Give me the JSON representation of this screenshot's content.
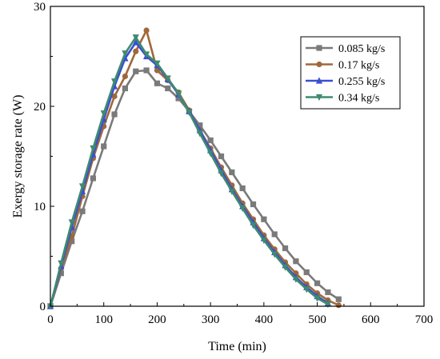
{
  "chart_data": {
    "type": "line",
    "xlabel": "Time (min)",
    "ylabel": "Exergy storage rate (W)",
    "xlim": [
      0,
      700
    ],
    "ylim": [
      0,
      30
    ],
    "xticks": [
      0,
      100,
      200,
      300,
      400,
      500,
      600,
      700
    ],
    "yticks": [
      0,
      10,
      20,
      30
    ],
    "grid": false,
    "legend_position": "top-right",
    "series": [
      {
        "name": "0.085 kg/s",
        "color": "#7a7a7a",
        "marker": "square",
        "x": [
          0,
          20,
          40,
          60,
          80,
          100,
          120,
          140,
          160,
          180,
          200,
          220,
          240,
          260,
          280,
          300,
          320,
          340,
          360,
          380,
          400,
          420,
          440,
          460,
          480,
          500,
          520,
          540
        ],
        "y": [
          0,
          3.3,
          6.5,
          9.5,
          12.8,
          16.0,
          19.2,
          21.8,
          23.5,
          23.6,
          22.3,
          21.8,
          20.8,
          19.5,
          18.1,
          16.6,
          15.0,
          13.4,
          11.8,
          10.2,
          8.7,
          7.2,
          5.8,
          4.5,
          3.4,
          2.3,
          1.4,
          0.7
        ]
      },
      {
        "name": "0.17 kg/s",
        "color": "#a0683a",
        "marker": "circle",
        "x": [
          0,
          20,
          40,
          60,
          80,
          100,
          120,
          140,
          160,
          180,
          200,
          220,
          240,
          260,
          280,
          300,
          320,
          340,
          360,
          380,
          400,
          420,
          440,
          460,
          480,
          500,
          520,
          540
        ],
        "y": [
          0,
          3.8,
          7.0,
          11.0,
          14.8,
          18.0,
          21.0,
          23.0,
          25.5,
          27.6,
          23.6,
          22.6,
          21.4,
          19.6,
          17.6,
          15.8,
          13.9,
          12.1,
          10.3,
          8.7,
          7.1,
          5.7,
          4.4,
          3.3,
          2.2,
          1.3,
          0.6,
          0.1
        ]
      },
      {
        "name": "0.255 kg/s",
        "color": "#3a4fd0",
        "marker": "triangle-up",
        "x": [
          0,
          20,
          40,
          60,
          80,
          100,
          120,
          140,
          160,
          180,
          200,
          220,
          240,
          260,
          280,
          300,
          320,
          340,
          360,
          380,
          400,
          420,
          440,
          460,
          480,
          500,
          520
        ],
        "y": [
          0,
          4.0,
          7.9,
          11.5,
          15.2,
          18.7,
          22.0,
          24.8,
          26.4,
          25.0,
          24.1,
          22.7,
          21.2,
          19.5,
          17.6,
          15.6,
          13.6,
          11.7,
          10.0,
          8.4,
          6.8,
          5.4,
          4.1,
          2.9,
          1.9,
          1.0,
          0.3
        ]
      },
      {
        "name": "0.34 kg/s",
        "color": "#3f8a72",
        "marker": "triangle-down",
        "x": [
          0,
          20,
          40,
          60,
          80,
          100,
          120,
          140,
          160,
          180,
          200,
          220,
          240,
          260,
          280,
          300,
          320,
          340,
          360,
          380,
          400,
          420,
          440,
          460,
          480,
          500,
          520
        ],
        "y": [
          0,
          4.3,
          8.4,
          12.0,
          15.8,
          19.3,
          22.5,
          25.3,
          26.9,
          25.2,
          24.3,
          22.8,
          21.3,
          19.4,
          17.3,
          15.3,
          13.3,
          11.5,
          9.8,
          8.1,
          6.6,
          5.2,
          3.9,
          2.7,
          1.7,
          0.8,
          0.2
        ]
      }
    ]
  }
}
